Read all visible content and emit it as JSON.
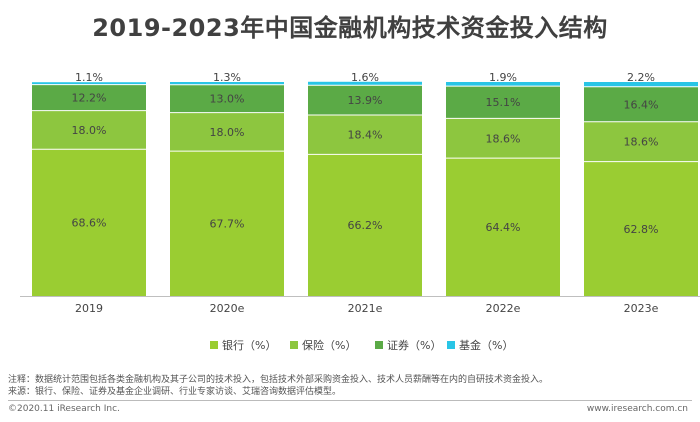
{
  "chart_data": {
    "type": "bar",
    "stacked": true,
    "title": "2019-2023年中国金融机构技术资金投入结构",
    "categories": [
      "2019",
      "2020e",
      "2021e",
      "2022e",
      "2023e"
    ],
    "series": [
      {
        "name": "银行（%）",
        "color": "#9ACD32",
        "values": [
          68.6,
          67.7,
          66.2,
          64.4,
          62.8
        ],
        "labels": [
          "68.6%",
          "67.7%",
          "66.2%",
          "64.4%",
          "62.8%"
        ]
      },
      {
        "name": "保险（%）",
        "color": "#8DC63F",
        "values": [
          18.0,
          18.0,
          18.4,
          18.6,
          18.6
        ],
        "labels": [
          "18.0%",
          "18.0%",
          "18.4%",
          "18.6%",
          "18.6%"
        ]
      },
      {
        "name": "证券（%）",
        "color": "#5BAA46",
        "values": [
          12.2,
          13.0,
          13.9,
          15.1,
          16.4
        ],
        "labels": [
          "12.2%",
          "13.0%",
          "13.9%",
          "15.1%",
          "16.4%"
        ]
      },
      {
        "name": "基金（%）",
        "color": "#29C5E6",
        "values": [
          1.1,
          1.3,
          1.6,
          1.9,
          2.2
        ],
        "labels": [
          "1.1%",
          "1.3%",
          "1.6%",
          "1.9%",
          "2.2%"
        ]
      }
    ],
    "ylim": [
      0,
      100
    ],
    "grid": false,
    "legend_position": "bottom"
  },
  "notes": {
    "note": "注释：数据统计范围包括各类金融机构及其子公司的技术投入，包括技术外部采购资金投入、技术人员薪酬等在内的自研技术资金投入。",
    "source": "来源：银行、保险、证券及基金企业调研、行业专家访谈、艾瑞咨询数据评估模型。"
  },
  "footer": {
    "copyright": "©2020.11 iResearch Inc.",
    "website": "www.iresearch.com.cn"
  }
}
